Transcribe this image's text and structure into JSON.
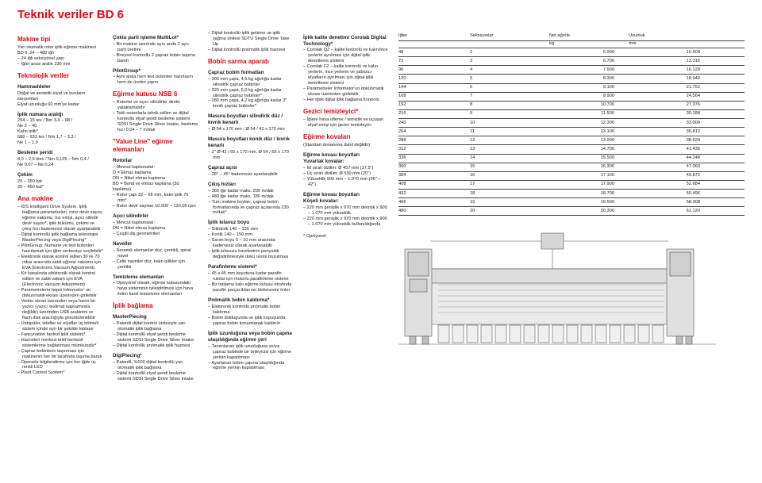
{
  "title": "Teknik veriler BD 6",
  "col1": {
    "s1_h": "Makine tipi",
    "s1_p": "Yarı otomatik rotor iplik eğirme makinesi BD 6, 24 – 480 iğli",
    "s1_li": [
      "24 iğli seksiyonel yapı",
      "İğler arası aralık 230 mm"
    ],
    "s2_h": "Teknolojik veriler",
    "s2a_h": "Hammaddeler",
    "s2a_p": "Doğal ve sentetik elyaf ve bunların karışımları\nElyaf uzunluğu 60 mm'ye kadar",
    "s2b_h": "İplik numara aralığı",
    "s2b_p": "294 – 15 tex / Nm 3,4 – 68 /\nNe 2 – 40\nKalın iplik*\n588 – 933 tex / Nm 1,7 – 3,3 /\nNe 1 – 1,9",
    "s2c_h": "Besleme şeridi",
    "s2c_p": "8,0 – 2,5 ktex / Nm 0,125 – Nm 0,4 /\nNe 0,07 – Ne 0,24",
    "s2d_h": "Çekim",
    "s2d_p": "20 – 350 kat\n20 – 450 kat*",
    "s3_h": "Ana makine",
    "s3_li": [
      "IDS Intelligent Drive System. İplik bağlama parametreleri, rotor devir sayısı, eğirme vakumu, toz emişi, açıcı silindir devir sayısı*, iplik bükümü, çekimi ve çıkış hızı kademesiz olarak ayarlanabilir",
      "Dijital kontrollü iplik bağlama teknolojisi MasterPiecing veya DigiPiecing*",
      "PilotGroup: Numune ve test bobinleri hazırlamak için iğler serbestçe seçilebilir*",
      "Elektronik olarak kontrol edilen 30 ile 70 mbar arasında sabit eğirme vakumu için EVA (Electronic Vacuum Adjustment)",
      "Kir kanalında elektronik olarak kontrol edilen ve sabit vakum için EVA (Electronic Vacuum Adjustment)",
      "Parametrelerin hepsi Informator' un dokunmatik ekranı üzerinden girilebilir",
      "Veriler ekran üzerinden veya harici bir yazıcı (yazıcı teslimat kapsamında değildir) üzerinden USB arabirimi ve flash disk aracılığıyla görüntülenebilir",
      "Üstüpüler, telefler ve elyaflar üç bölmeli sistem içinde ayrı bir şekilde toplanır",
      "Fancynation fantezi iplik sistemi*",
      "Hazneleri merkezi telef bertaraf sistemlerine bağlanması mümkündür*",
      "Çapraz bobinlerin taşınması için makinenin her bir tarafında taşıma bandı",
      "Operatör bilgilendirme için her iğde üç renkli LED",
      "Plant Control System*"
    ]
  },
  "col2": {
    "s1_h": "Çoklu parti işleme MultiLot*",
    "s1_li": [
      "Bir makine üzerinde aynı anda 2 ayrı parti üretimi",
      "Bireysel kontrollü 2 çapraz bobin taşıma bandı"
    ],
    "s2_h": "PilotGroup*",
    "s2_li": [
      "Aynı anda hem test bobinleri hazırlayın hem de üretim yapın"
    ],
    "s3_h": "Eğirme kutusu NSB 6",
    "s3_li": [
      "Rotorlar ve açıcı silindirler direkt yataklamalıdır",
      "Tekli motorlarla tahrik edilen ve dijital kontrollü elyaf şeridi besleme sistemi SDSI Single Drive Silver Intake, besleme hızı 0,04 – 7 m/dak"
    ],
    "s4_h": "\"Value Line\" eğirme elemanları",
    "s4a_h": "Rotorlar",
    "s4a_li": [
      "Mevcut kaplamalar:",
      "D = Elmas kaplama",
      "DN = Nikel elmas kaplama",
      "BD = Bond ve elmas kaplama (3d kaplama)"
    ],
    "s4a_li2": [
      "Rotor çapı 32 – 66 mm, kalın iplik 76 mm*",
      "Rotor devir sayıları 10.000 – 120.00 rpm"
    ],
    "s4b_h": "Açıcı silindirler",
    "s4b_li": [
      "Mevcut kaplamalar:",
      "DN = Nikel elmas kaplama",
      "Çeşitli diş geometrileri"
    ],
    "s4c_h": "Naveller",
    "s4c_li": [
      "Seramik elemanlar düz, çentikli, spiral navel",
      "Çelik naveller düz, kalın iplikler için çentikli"
    ],
    "s4d_h": "Temizleme elemanları",
    "s4d_li": [
      "Opsiyonel olarak, eğirme kutusundaki hava sisteminin iyileştirilmesi için hava iletim kanlı temizleme elemanları"
    ],
    "s5_h": "İplik bağlama",
    "s5a_h": "MasterPiecing",
    "s5a_li": [
      "Patentli dijital kontrol ünitesiyle yarı otomatik iplik bağlama",
      "Dijital kontrollü elyaf şeridi besleme sistemi SDSI Single Drive Silver Intake",
      "Dijital kontrollü pnömatik iplik haznesi"
    ],
    "s5b_h": "DigiPiecing*",
    "s5b_li": [
      "Patentli, %100 dijital kontrollü yarı otomatik iplik bağlama",
      "Dijital kontrollü elyaf şeridi besleme sistemi SDSI Single Drive Silver intake"
    ]
  },
  "col3": {
    "s0_li": [
      "Dijital kontrollü iplik getirme ve iplik sağma ünitesi SDTU Single Drive Take Up",
      "Dijital kontrollü pnömatik iplik haznesi"
    ],
    "s1_h": "Bobin sarma aparatı",
    "s1a_h": "Çapraz bobin formatları",
    "s1a_li": [
      "300 mm çapa, 4,5 kg ağırlığa kadar silindirik çapraz bobinler",
      "320 mm çapa, 5,0 kg ağırlığa kadar silindirik çapraz bobinler*",
      "280 mm çapa, 4,2 kg ağırlığa kadar 2\" konik çapraz bobinler*"
    ],
    "s1b_h": "Masura boyutları silindirik düz / kıvrık kenarlı",
    "s1b_li": [
      "Ø 54 x 170 mm / Ø 54 / 42 x 170 mm"
    ],
    "s1c_h": "Masura boyutları konik düz / kıvrık kenarlı",
    "s1c_li": [
      "2\" Ø 42 / 65 x 170 mm, Ø 54 / 65 x 170 mm"
    ],
    "s1d_h": "Çapraz açısı",
    "s1d_li": [
      "28° – 45° kademesiz ayarlanabilir"
    ],
    "s1e_h": "Çıkış hızları",
    "s1e_li": [
      "360 iğe kadar maks. 200 m/dak",
      "480 iğe kadar maks. 180 m/dak",
      "Tüm makine boyları, çapraz bobin formatlarında ve çapraz açılarında 230 m/dak*"
    ],
    "s1f_h": "İplik kılavuz boyu",
    "s1f_li": [
      "Silindirik 140 – 155 mm",
      "Konik 140 – 150 mm",
      "Sarım boyu 0 – 10 mm arasında kademesiz olarak ayarlanabilir",
      "İplik kılavuzu hareketinin periyodik değiştirilmesiyle doku resmi bozulması"
    ],
    "s1g_h": "Parafinleme sistemi*",
    "s1g_li": [
      "45 x 45 mm boyutuna kadar parafin rulolar için motorlu parafinleme sistemi",
      "Bir toplama kabı eğirme kutusu etrafında parafin parçacıklarının birikmesini önler"
    ],
    "s1h_h": "Pnömatik bobin kaldırma*",
    "s1h_li": [
      "Elektronik kontrollü pnömatik bobin kaldırma",
      "Bobin doldugunda ve iplik kopuşunda çapraz bobin konumlanak kaldırılır"
    ],
    "s1i_h": "İplik uzunluğuna veya bobin çapına ulaşıldığında eğirme yeri",
    "s1i_li": [
      "Tanımlanan iplik uzunluğuna ve/ya çapraz bobinde bir önleyicisi için eğirme yerinin kapatılması",
      "Ayarlanan bobin çapına ulaşıldığında eğirme yerinin kapatılması"
    ]
  },
  "col4": {
    "s1_h": "İplik kalite denetimi Corolab Digital Technology*",
    "s1_li": [
      "Corolab Q2 – kalite kontrolü ve kalın/ince yerlerin ayrılması için dijital iplik denetleme sistemi",
      "Corolab F2 – kalite kontrolü ve kalın yerlerin, ince yerlerin ve yabancı elyafların ayrılması için dijital iplik denetleme sistemi",
      "Parametreler Informator'un dokunmatik ekranı üzerinden girilebilir",
      "Her iğde dijital iplik bağlama kontrolü"
    ],
    "s2_h": "Gezici temizleyici*",
    "s2_li": [
      "İğlere hava üfleme / temizlik ve uçuşan elyaf emişi için gezici temizleyici"
    ],
    "s3_h": "Eğirme kovaları",
    "s3_p": "(Standart donanıma dahil değildir)",
    "s3a_h": "Eğirme kovası boyutları\nYuvarlak kovalar:",
    "s3a_li": [
      "İki sıralı dizilim: Ø 457 mm (17,5\")",
      "Üç sıralı dizilim: Ø 530 mm (20\")",
      "Yükseklik 900 mm – 1.070 mm (36\" – 42\")"
    ],
    "s3b_h": "Eğirme kovası boyutları\nKöşeli kovalar:",
    "s3b_li": [
      "220 mm genişlik x 970 mm derinlik x 900 – 1.070 mm yükseklik",
      "220 mm genişlik x 970 mm derinlik x 900 – 1.070 mm yükseklik kullanıldığında"
    ],
    "s3c_p": "* Opsiyonel"
  },
  "table": {
    "headers": [
      "İğler",
      "Seksiyonlar",
      "Net ağırlık",
      "Uzunluk"
    ],
    "units": [
      "",
      "",
      "kg",
      "mm"
    ],
    "rows": [
      [
        "48",
        "2",
        "5.900",
        "10.504"
      ],
      [
        "72",
        "3",
        "6.700",
        "13.316"
      ],
      [
        "96",
        "4",
        "7.500",
        "16.128"
      ],
      [
        "120",
        "5",
        "8.300",
        "18.940"
      ],
      [
        "144",
        "6",
        "9.100",
        "21.752"
      ],
      [
        "168",
        "7",
        "9.900",
        "24.564"
      ],
      [
        "192",
        "8",
        "10.700",
        "27.376"
      ],
      [
        "216",
        "9",
        "11.500",
        "30.188"
      ],
      [
        "240",
        "10",
        "12.300",
        "33.000"
      ],
      [
        "264",
        "11",
        "13.100",
        "35.812"
      ],
      [
        "288",
        "12",
        "13.900",
        "38.624"
      ],
      [
        "312",
        "13",
        "14.700",
        "41.436"
      ],
      [
        "336",
        "14",
        "15.500",
        "44.248"
      ],
      [
        "360",
        "15",
        "16.300",
        "47.060"
      ],
      [
        "384",
        "16",
        "17.100",
        "49.872"
      ],
      [
        "408",
        "17",
        "17.900",
        "52.684"
      ],
      [
        "432",
        "18",
        "18.700",
        "55.496"
      ],
      [
        "456",
        "19",
        "19.500",
        "58.308"
      ],
      [
        "480",
        "20",
        "20.300",
        "61.120"
      ]
    ]
  },
  "schematic": {
    "stroke": "#555555",
    "fill": "#dddddd",
    "bg": "#ffffff"
  }
}
